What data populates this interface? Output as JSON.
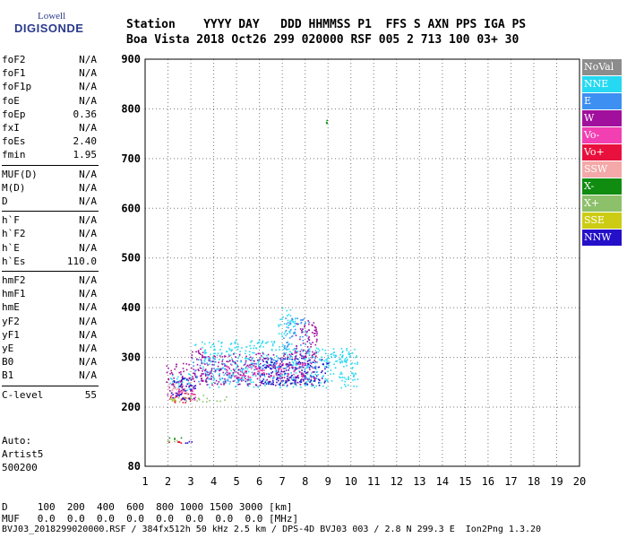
{
  "logo": {
    "line1": "Lowell",
    "line2": "DIGISONDE"
  },
  "header": {
    "row1": "Station    YYYY DAY   DDD HHMMSS P1  FFS S AXN PPS IGA PS",
    "row2": "Boa Vista 2018 Oct26 299 020000 RSF 005 2 713 100 03+ 30"
  },
  "params": [
    {
      "label": "foF2",
      "value": "N/A"
    },
    {
      "label": "foF1",
      "value": "N/A"
    },
    {
      "label": "foF1p",
      "value": "N/A"
    },
    {
      "label": "foE",
      "value": "N/A"
    },
    {
      "label": "foEp",
      "value": "0.36"
    },
    {
      "label": "fxI",
      "value": "N/A"
    },
    {
      "label": "foEs",
      "value": "2.40"
    },
    {
      "label": "fmin",
      "value": "1.95"
    },
    {
      "label": "MUF(D)",
      "value": "N/A"
    },
    {
      "label": "M(D)",
      "value": "N/A"
    },
    {
      "label": "D",
      "value": "N/A"
    },
    {
      "label": "h`F",
      "value": "N/A"
    },
    {
      "label": "h`F2",
      "value": "N/A"
    },
    {
      "label": "h`E",
      "value": "N/A"
    },
    {
      "label": "h`Es",
      "value": "110.0"
    },
    {
      "label": "hmF2",
      "value": "N/A"
    },
    {
      "label": "hmF1",
      "value": "N/A"
    },
    {
      "label": "hmE",
      "value": "N/A"
    },
    {
      "label": "yF2",
      "value": "N/A"
    },
    {
      "label": "yF1",
      "value": "N/A"
    },
    {
      "label": "yE",
      "value": "N/A"
    },
    {
      "label": "B0",
      "value": "N/A"
    },
    {
      "label": "B1",
      "value": "N/A"
    },
    {
      "label": "C-level",
      "value": "55"
    }
  ],
  "auto": {
    "line1": "Auto:",
    "line2": "Artist5",
    "line3": "500200"
  },
  "legend": [
    {
      "label": "NoVal",
      "color": "#8c8c8c"
    },
    {
      "label": "NNE",
      "color": "#26d9f2"
    },
    {
      "label": "E",
      "color": "#3d8ff2"
    },
    {
      "label": "W",
      "color": "#a0109c"
    },
    {
      "label": "Vo-",
      "color": "#f23fb2"
    },
    {
      "label": "Vo+",
      "color": "#e8103c"
    },
    {
      "label": "SSW",
      "color": "#f5a8a8"
    },
    {
      "label": "X-",
      "color": "#108c10"
    },
    {
      "label": "X+",
      "color": "#8cc06a"
    },
    {
      "label": "SSE",
      "color": "#cccc14"
    },
    {
      "label": "NNW",
      "color": "#2410c8"
    }
  ],
  "footer": {
    "line1": "D     100  200  400  600  800 1000 1500 3000 [km]",
    "line2": "MUF   0.0  0.0  0.0  0.0  0.0  0.0  0.0  0.0 [MHz]",
    "line3": "BVJ03_2018299020000.RSF / 384fx512h 50 kHz 2.5 km / DPS-4D BVJ03 003 / 2.8 N 299.3 E  Ion2Png 1.3.20"
  },
  "chart_data": {
    "type": "scatter",
    "title": "",
    "xlabel": "",
    "ylabel": "",
    "xlim": [
      1,
      20
    ],
    "ylim": [
      80,
      900
    ],
    "xticks": [
      "1",
      "2",
      "3",
      "4",
      "5",
      "6",
      "7",
      "8",
      "9",
      "10",
      "11",
      "12",
      "13",
      "14",
      "15",
      "16",
      "17",
      "18",
      "19",
      "20"
    ],
    "yticks": [
      "80",
      "200",
      "300",
      "400",
      "500",
      "600",
      "700",
      "800",
      "900"
    ],
    "grid": "dashed",
    "legend_position": "right",
    "series": [
      {
        "name": "NNE",
        "color": "#26d9f2",
        "regions": [
          [
            3.1,
            7.4,
            320,
            336
          ],
          [
            3.5,
            10.3,
            240,
            320
          ],
          [
            6.8,
            7.6,
            340,
            400
          ],
          [
            9.0,
            10.3,
            290,
            310
          ],
          [
            2.0,
            3.0,
            230,
            270
          ]
        ]
      },
      {
        "name": "E",
        "color": "#3d8ff2",
        "regions": [
          [
            3.0,
            8.5,
            250,
            300
          ],
          [
            7.0,
            8.2,
            300,
            380
          ]
        ]
      },
      {
        "name": "W",
        "color": "#a0109c",
        "regions": [
          [
            1.9,
            3.1,
            225,
            290
          ],
          [
            3.0,
            8.5,
            245,
            310
          ],
          [
            7.5,
            8.5,
            300,
            375
          ],
          [
            3.0,
            3.6,
            300,
            320
          ]
        ]
      },
      {
        "name": "Vo-",
        "color": "#f23fb2",
        "regions": [
          [
            2.0,
            3.2,
            215,
            240
          ],
          [
            4.5,
            8.0,
            260,
            290
          ]
        ]
      },
      {
        "name": "Vo+",
        "color": "#e8103c",
        "regions": [
          [
            2.0,
            3.1,
            210,
            230
          ],
          [
            1.8,
            2.9,
            128,
            134
          ]
        ]
      },
      {
        "name": "SSW",
        "color": "#f5a8a8",
        "regions": [
          [
            2.0,
            3.0,
            225,
            250
          ]
        ]
      },
      {
        "name": "X-",
        "color": "#108c10",
        "regions": [
          [
            2.0,
            2.6,
            134,
            139
          ],
          [
            8.9,
            8.9,
            770,
            778
          ]
        ]
      },
      {
        "name": "X+",
        "color": "#8cc06a",
        "regions": [
          [
            2.0,
            4.6,
            212,
            225
          ],
          [
            1.9,
            2.6,
            130,
            136
          ]
        ]
      },
      {
        "name": "SSE",
        "color": "#cccc14",
        "regions": [
          [
            2.0,
            2.4,
            212,
            218
          ]
        ]
      },
      {
        "name": "NNW",
        "color": "#2410c8",
        "regions": [
          [
            2.0,
            3.2,
            215,
            260
          ],
          [
            6.0,
            9.0,
            245,
            300
          ],
          [
            2.7,
            3.1,
            128,
            133
          ]
        ]
      }
    ]
  }
}
